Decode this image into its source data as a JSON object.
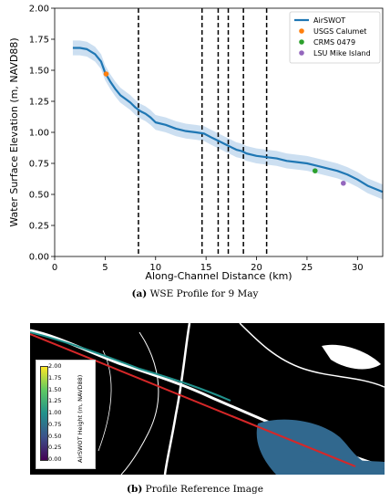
{
  "chart_data": {
    "type": "line",
    "title": "",
    "xlabel": "Along-Channel Distance (km)",
    "ylabel": "Water Surface Elevation (m, NAVD88)",
    "xlim": [
      0,
      32.5
    ],
    "ylim": [
      0,
      2.0
    ],
    "xticks": [
      0,
      5,
      10,
      15,
      20,
      25,
      30
    ],
    "yticks": [
      0.0,
      0.25,
      0.5,
      0.75,
      1.0,
      1.25,
      1.5,
      1.75,
      2.0
    ],
    "grid": false,
    "legend_position": "top-right",
    "series": [
      {
        "name": "AirSWOT",
        "color": "#1f77b4",
        "band_color": "#c6dbef",
        "band_halfwidth": 0.06,
        "x": [
          1.8,
          2.5,
          3.2,
          4.0,
          4.6,
          5.0,
          5.5,
          6.0,
          6.5,
          7.0,
          7.5,
          8.0,
          8.5,
          9.0,
          9.5,
          10.0,
          11.0,
          12.0,
          13.0,
          14.0,
          14.8,
          15.5,
          16.0,
          16.5,
          17.0,
          17.5,
          18.0,
          18.5,
          19.0,
          20.0,
          21.0,
          22.0,
          23.0,
          24.0,
          25.0,
          26.0,
          27.0,
          28.0,
          29.0,
          30.0,
          31.0,
          32.5
        ],
        "y": [
          1.68,
          1.68,
          1.67,
          1.63,
          1.57,
          1.48,
          1.41,
          1.35,
          1.3,
          1.27,
          1.24,
          1.2,
          1.17,
          1.15,
          1.12,
          1.08,
          1.06,
          1.03,
          1.01,
          1.0,
          0.99,
          0.96,
          0.94,
          0.92,
          0.9,
          0.88,
          0.86,
          0.85,
          0.83,
          0.81,
          0.8,
          0.79,
          0.77,
          0.76,
          0.75,
          0.73,
          0.71,
          0.69,
          0.66,
          0.62,
          0.57,
          0.52
        ]
      },
      {
        "name": "USGS Calumet",
        "type": "scatter",
        "color": "#ff7f0e",
        "x": [
          5.1
        ],
        "y": [
          1.47
        ]
      },
      {
        "name": "CRMS 0479",
        "type": "scatter",
        "color": "#2ca02c",
        "x": [
          25.8
        ],
        "y": [
          0.69
        ]
      },
      {
        "name": "LSU Mike Island",
        "type": "scatter",
        "color": "#9467bd",
        "x": [
          28.6
        ],
        "y": [
          0.59
        ]
      }
    ],
    "vlines": [
      8.3,
      14.6,
      16.2,
      17.2,
      18.7,
      21.0
    ],
    "vline_style": "dashed",
    "vline_color": "#000000"
  },
  "captions": {
    "a_letter": "(a)",
    "a_text": " WSE Profile for 9 May",
    "b_letter": "(b)",
    "b_text": " Profile Reference Image"
  },
  "map": {
    "colorbar_label": "AirSWOT Height (m, NAVD88)",
    "colorbar_ticks": [
      "2.00",
      "1.75",
      "1.50",
      "1.25",
      "1.00",
      "0.75",
      "0.50",
      "0.25",
      "0.00"
    ],
    "profile_color": "#d62728",
    "land_color": "#000000",
    "water_color": "#ffffff",
    "swot_water_color": "#31688e"
  }
}
